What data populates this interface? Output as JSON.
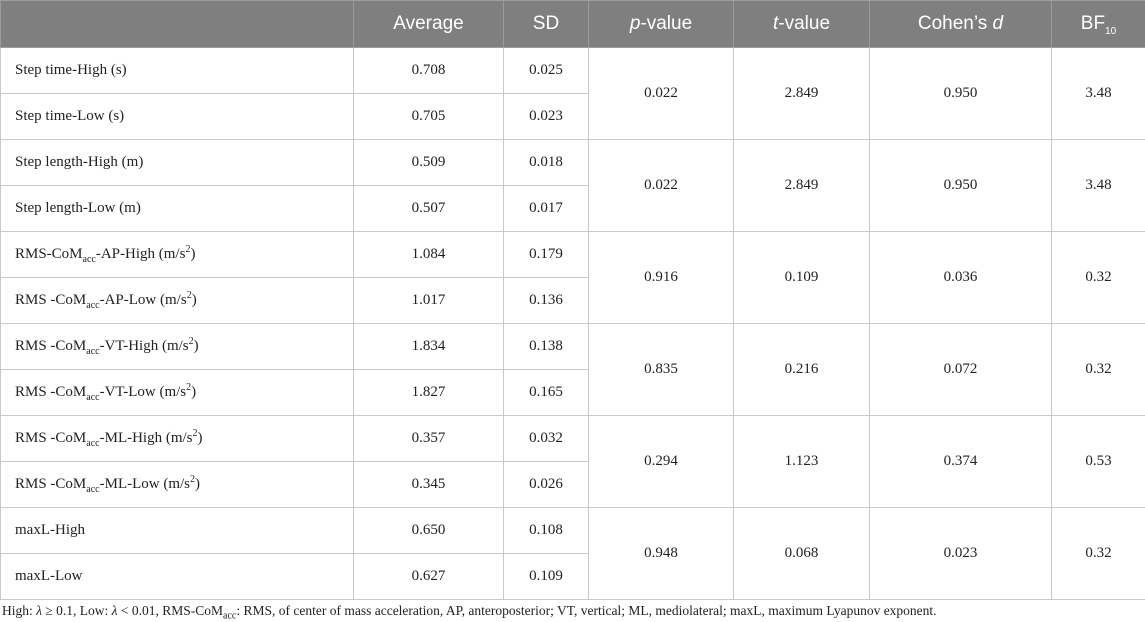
{
  "headers": {
    "label": "",
    "average": "Average",
    "sd": "SD",
    "p_sym": "p",
    "p_rest": "-value",
    "t_sym": "t",
    "t_rest": "-value",
    "d_text": "Cohen’s ",
    "d_sym": "d",
    "bf_base": "BF",
    "bf_sub": "10"
  },
  "sub_acc": "acc",
  "sup_2": "2",
  "rows": [
    {
      "label": "Step time-High (s)",
      "average": "0.708",
      "sd": "0.025"
    },
    {
      "label": "Step time-Low (s)",
      "average": "0.705",
      "sd": "0.023"
    },
    {
      "label": "Step length-High (m)",
      "average": "0.509",
      "sd": "0.018"
    },
    {
      "label": "Step length-Low (m)",
      "average": "0.507",
      "sd": "0.017"
    },
    {
      "label_prefix": "RMS-CoM",
      "label_mid": "-AP-High (m/s",
      "label_suffix": ")",
      "average": "1.084",
      "sd": "0.179"
    },
    {
      "label_prefix": "RMS -CoM",
      "label_mid": "-AP-Low (m/s",
      "label_suffix": ")",
      "average": "1.017",
      "sd": "0.136"
    },
    {
      "label_prefix": "RMS -CoM",
      "label_mid": "-VT-High (m/s",
      "label_suffix": ")",
      "average": "1.834",
      "sd": "0.138"
    },
    {
      "label_prefix": "RMS -CoM",
      "label_mid": "-VT-Low (m/s",
      "label_suffix": ")",
      "average": "1.827",
      "sd": "0.165"
    },
    {
      "label_prefix": "RMS -CoM",
      "label_mid": "-ML-High (m/s",
      "label_suffix": ")",
      "average": "0.357",
      "sd": "0.032"
    },
    {
      "label_prefix": "RMS -CoM",
      "label_mid": "-ML-Low (m/s",
      "label_suffix": ")",
      "average": "0.345",
      "sd": "0.026"
    },
    {
      "label": "maxL-High",
      "average": "0.650",
      "sd": "0.108"
    },
    {
      "label": "maxL-Low",
      "average": "0.627",
      "sd": "0.109"
    }
  ],
  "groups": [
    {
      "p": "0.022",
      "t": "2.849",
      "d": "0.950",
      "bf": "3.48"
    },
    {
      "p": "0.022",
      "t": "2.849",
      "d": "0.950",
      "bf": "3.48"
    },
    {
      "p": "0.916",
      "t": "0.109",
      "d": "0.036",
      "bf": "0.32"
    },
    {
      "p": "0.835",
      "t": "0.216",
      "d": "0.072",
      "bf": "0.32"
    },
    {
      "p": "0.294",
      "t": "1.123",
      "d": "0.374",
      "bf": "0.53"
    },
    {
      "p": "0.948",
      "t": "0.068",
      "d": "0.023",
      "bf": "0.32"
    }
  ],
  "footnote": {
    "t1": "High: ",
    "lambda1": "λ",
    "t2": " ≥ 0.1, Low: ",
    "lambda2": "λ",
    "t3": " < 0.01, RMS-CoM",
    "sub": "acc",
    "t4": ": RMS, of center of mass acceleration, AP, anteroposterior; VT, vertical; ML, mediolateral; maxL, maximum Lyapunov exponent."
  }
}
